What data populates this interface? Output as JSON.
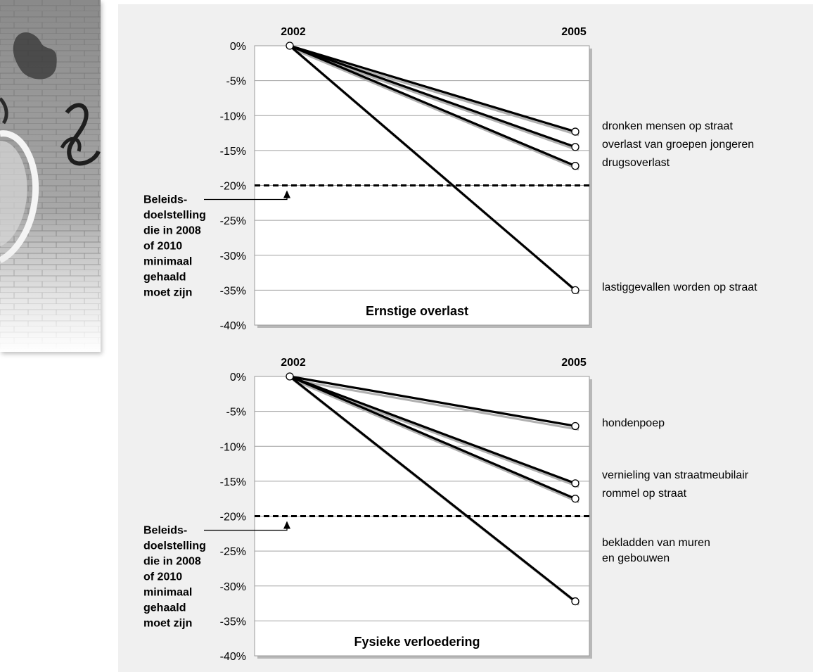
{
  "chart_data": [
    {
      "type": "line",
      "title": "Ernstige overlast",
      "x": [
        "2002",
        "2005"
      ],
      "ylim": [
        -40,
        0
      ],
      "yticks": [
        "0%",
        "-5%",
        "-10%",
        "-15%",
        "-20%",
        "-25%",
        "-30%",
        "-35%",
        "-40%"
      ],
      "grid": true,
      "target": {
        "value": -20,
        "label": "Beleids-|doelstelling|die in 2008|of 2010|minimaal|gehaald|moet zijn"
      },
      "series": [
        {
          "name": "dronken mensen op straat",
          "values": [
            0,
            -12.3
          ]
        },
        {
          "name": "overlast van groepen jongeren",
          "values": [
            0,
            -14.5
          ]
        },
        {
          "name": "drugsoverlast",
          "values": [
            0,
            -17.2
          ]
        },
        {
          "name": "lastiggevallen worden op straat",
          "values": [
            0,
            -35
          ]
        }
      ]
    },
    {
      "type": "line",
      "title": "Fysieke verloedering",
      "x": [
        "2002",
        "2005"
      ],
      "ylim": [
        -40,
        0
      ],
      "yticks": [
        "0%",
        "-5%",
        "-10%",
        "-15%",
        "-20%",
        "-25%",
        "-30%",
        "-35%",
        "-40%"
      ],
      "grid": true,
      "target": {
        "value": -20,
        "label": "Beleids-|doelstelling|die in 2008|of 2010|minimaal|gehaald|moet zijn"
      },
      "series": [
        {
          "name": "hondenpoep",
          "values": [
            0,
            -7.1
          ]
        },
        {
          "name": "vernieling van straatmeubilair",
          "values": [
            0,
            -15.3
          ]
        },
        {
          "name": "rommel op straat",
          "values": [
            0,
            -17.5
          ]
        },
        {
          "name": "bekladden van muren|en gebouwen",
          "values": [
            0,
            -32.2
          ]
        }
      ]
    }
  ]
}
